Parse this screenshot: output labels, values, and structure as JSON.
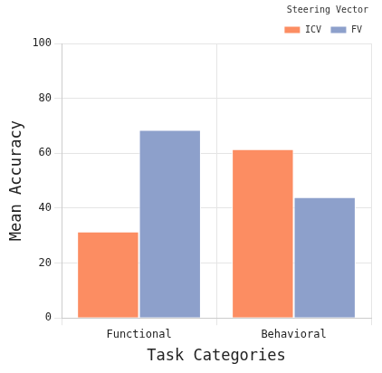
{
  "chart_data": {
    "type": "bar",
    "x_label": "Task Categories",
    "y_label": "Mean Accuracy",
    "legend_title": "Steering Vector",
    "categories": [
      "Functional",
      "Behavioral"
    ],
    "series": [
      {
        "name": "ICV",
        "color": "#fc8d62",
        "values": [
          31.5,
          61.5
        ]
      },
      {
        "name": "FV",
        "color": "#8da0cb",
        "values": [
          68.5,
          44
        ]
      }
    ],
    "ylim": [
      0,
      100
    ],
    "yticks": [
      0,
      20,
      40,
      60,
      80,
      100
    ],
    "grid": true,
    "legend": "upper right"
  }
}
